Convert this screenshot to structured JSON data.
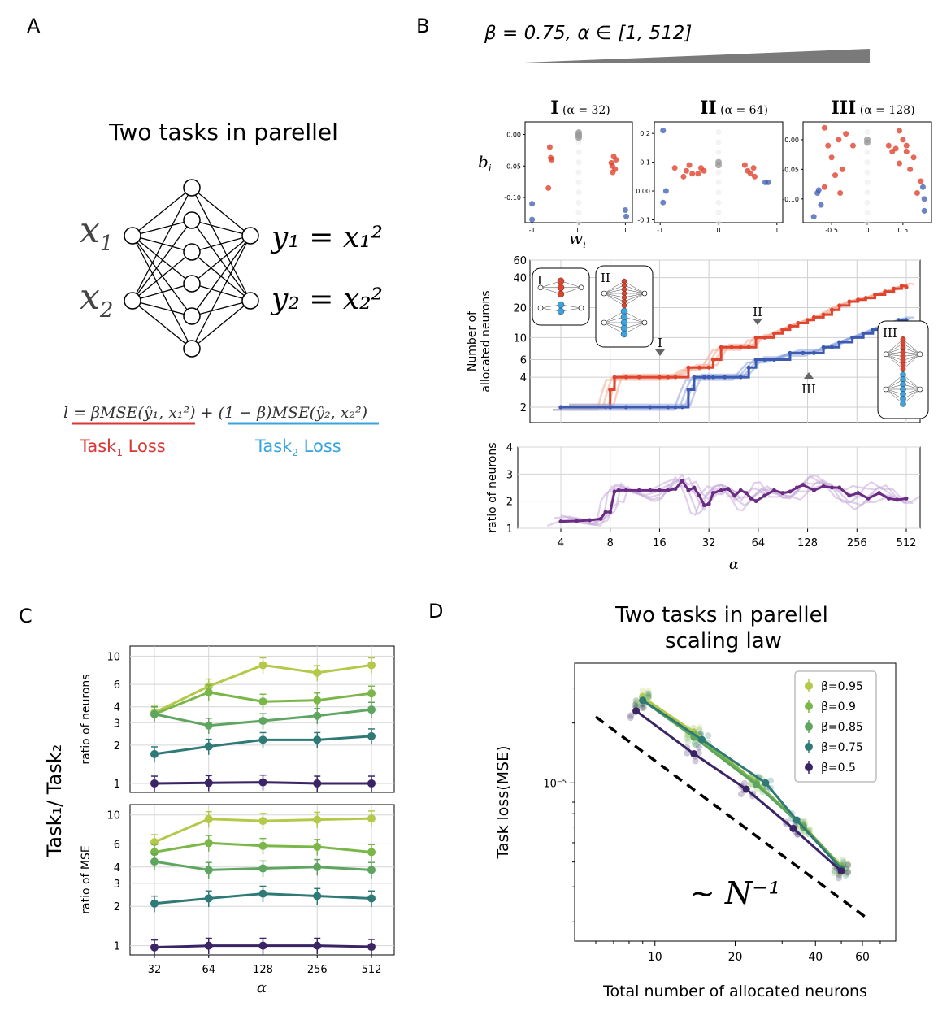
{
  "panel_labels": {
    "A": "A",
    "B": "B",
    "C": "C",
    "D": "D"
  },
  "colors": {
    "task1": "#e0432e",
    "task2": "#3c5bb0",
    "task1_light": "#f2a98f",
    "task2_light": "#8ea3dc",
    "ratio": "#6a2c83",
    "loss1": "#d93636",
    "loss2": "#3aa3e0",
    "gray": "#7f7f7f",
    "viridis": [
      "#b4c84a",
      "#7ab648",
      "#5ea660",
      "#2f7a76",
      "#3b2466"
    ]
  },
  "panel_a": {
    "title": "Two tasks in parellel",
    "in1": "x",
    "in1_sub": "1",
    "in2": "x",
    "in2_sub": "2",
    "out1": "y₁ = x₁²",
    "out2": "y₂ = x₂²",
    "loss_formula": "l = βMSE(ŷ₁, x₁²) + (1 − β)MSE(ŷ₂, x₂²)",
    "task1_label": "Task",
    "task1_sub": "1",
    "task1_tail": " Loss",
    "task2_label": "Task",
    "task2_sub": "2",
    "task2_tail": " Loss"
  },
  "panel_b": {
    "header": "β = 0.75, α ∈ [1, 512]",
    "scatter_titles": [
      {
        "roman": "I",
        "alpha": "(α = 32)"
      },
      {
        "roman": "II",
        "alpha": "(α = 64)"
      },
      {
        "roman": "III",
        "alpha": "(α = 128)"
      }
    ],
    "scatter_ylabel": "b",
    "scatter_ylabel_sub": "i",
    "scatter_xlabel": "w",
    "scatter_xlabel_sub": "i",
    "neurons_ylabel_1": "Number of",
    "neurons_ylabel_2": "allocated neurons",
    "ratio_ylabel": "ratio of neurons",
    "xlabel": "α",
    "inset_labels": [
      "I",
      "II",
      "III"
    ],
    "markers": [
      "I",
      "II",
      "III"
    ]
  },
  "panel_c": {
    "ylabel_main": "Task₁/ Task₂",
    "top_ylabel": "ratio of neurons",
    "bottom_ylabel": "ratio of MSE",
    "xlabel": "α"
  },
  "panel_d": {
    "title_1": "Two tasks in parellel",
    "title_2": "scaling law",
    "xlabel": "Total number of allocated neurons",
    "ylabel": "Task loss(MSE)",
    "annotation": "~ N⁻¹",
    "y_tick": "10⁻⁵"
  },
  "chart_data": [
    {
      "id": "B-scatter",
      "type": "scatter",
      "panels": [
        {
          "title": "I (α = 32)",
          "xticks": [
            -1,
            0,
            1
          ],
          "yticks": [
            0.0,
            -0.05,
            -0.1
          ],
          "xlim": [
            -1.15,
            1.15
          ],
          "ylim": [
            -0.14,
            0.02
          ],
          "red": [
            [
              -0.62,
              -0.02
            ],
            [
              -0.58,
              -0.04
            ],
            [
              -0.6,
              -0.037
            ],
            [
              -0.65,
              -0.085
            ],
            [
              0.75,
              -0.035
            ],
            [
              0.7,
              -0.045
            ],
            [
              0.72,
              -0.05
            ],
            [
              0.8,
              -0.04
            ],
            [
              0.73,
              -0.06
            ],
            [
              0.78,
              -0.055
            ]
          ],
          "blue": [
            [
              -1.0,
              -0.11
            ],
            [
              -1.0,
              -0.135
            ],
            [
              1.0,
              -0.12
            ],
            [
              1.02,
              -0.13
            ]
          ],
          "gray": [
            [
              0,
              0.0
            ],
            [
              0,
              -0.002
            ],
            [
              0,
              0.003
            ],
            [
              0,
              -0.005
            ]
          ]
        },
        {
          "title": "II (α = 64)",
          "xticks": [
            -1,
            0,
            1
          ],
          "yticks": [
            0.2,
            0.1,
            0.0,
            -0.1
          ],
          "xlim": [
            -1.1,
            1.1
          ],
          "ylim": [
            -0.11,
            0.24
          ],
          "red": [
            [
              -0.75,
              0.08
            ],
            [
              -0.6,
              0.05
            ],
            [
              -0.55,
              0.07
            ],
            [
              -0.5,
              0.09
            ],
            [
              -0.45,
              0.06
            ],
            [
              -0.35,
              0.06
            ],
            [
              -0.3,
              0.08
            ],
            [
              -0.25,
              0.07
            ],
            [
              0.45,
              0.09
            ],
            [
              0.5,
              0.07
            ],
            [
              0.55,
              0.06
            ],
            [
              0.6,
              0.08
            ],
            [
              0.62,
              0.05
            ]
          ],
          "blue": [
            [
              -0.95,
              0.21
            ],
            [
              -0.9,
              0.0
            ],
            [
              -0.95,
              -0.04
            ],
            [
              0.8,
              0.03
            ],
            [
              0.85,
              0.03
            ]
          ],
          "gray": [
            [
              0,
              0.1
            ],
            [
              0,
              0.09
            ]
          ]
        },
        {
          "title": "III (α = 128)",
          "xticks": [
            -0.5,
            0.0,
            0.5
          ],
          "yticks": [
            0.0,
            -0.05,
            -0.1
          ],
          "xlim": [
            -0.9,
            0.9
          ],
          "ylim": [
            -0.14,
            0.03
          ],
          "red": [
            [
              -0.6,
              0.02
            ],
            [
              -0.55,
              -0.01
            ],
            [
              -0.5,
              -0.03
            ],
            [
              -0.45,
              -0.06
            ],
            [
              -0.4,
              0.0
            ],
            [
              -0.38,
              -0.09
            ],
            [
              -0.35,
              -0.05
            ],
            [
              -0.3,
              0.01
            ],
            [
              -0.2,
              -0.01
            ],
            [
              0.3,
              -0.01
            ],
            [
              0.35,
              -0.02
            ],
            [
              0.4,
              -0.015
            ],
            [
              0.45,
              -0.04
            ],
            [
              0.5,
              0.0
            ],
            [
              0.55,
              -0.02
            ],
            [
              0.6,
              -0.05
            ],
            [
              0.65,
              -0.03
            ],
            [
              0.7,
              -0.09
            ],
            [
              0.75,
              -0.07
            ],
            [
              0.55,
              -0.01
            ],
            [
              -0.6,
              -0.08
            ],
            [
              0.45,
              0.015
            ]
          ],
          "blue": [
            [
              -0.75,
              -0.13
            ],
            [
              -0.7,
              -0.09
            ],
            [
              -0.68,
              -0.085
            ],
            [
              -0.65,
              -0.11
            ],
            [
              0.78,
              -0.08
            ],
            [
              0.8,
              -0.1
            ],
            [
              0.8,
              -0.12
            ]
          ],
          "gray": [
            [
              0,
              0.0
            ],
            [
              0,
              -0.005
            ]
          ]
        }
      ]
    },
    {
      "id": "B-neurons",
      "type": "line",
      "x_scale": "log2",
      "y_scale": "log",
      "ylim": [
        1.4,
        60
      ],
      "xlim": [
        4,
        512
      ],
      "yticks": [
        2,
        4,
        6,
        10,
        20,
        40,
        60
      ],
      "series": [
        {
          "color": "task1",
          "x": [
            4,
            7.5,
            8,
            8.5,
            10,
            12,
            16,
            18,
            20,
            24,
            28,
            32,
            34,
            38,
            44,
            50,
            56,
            62,
            70,
            80,
            90,
            100,
            112,
            128,
            140,
            160,
            180,
            200,
            230,
            260,
            290,
            330,
            380,
            430,
            480,
            512
          ],
          "y": [
            2,
            2,
            3,
            4,
            4,
            4,
            4,
            4,
            4,
            5,
            5,
            5,
            6,
            8,
            8,
            8,
            8,
            10,
            10,
            11,
            12,
            13,
            14,
            15,
            16,
            17,
            19,
            21,
            23,
            24,
            25,
            27,
            29,
            31,
            33,
            32
          ]
        },
        {
          "color": "task2",
          "x": [
            4,
            8,
            10,
            14,
            18,
            20,
            22,
            24,
            26,
            30,
            32,
            34,
            40,
            50,
            56,
            62,
            70,
            80,
            100,
            120,
            140,
            160,
            180,
            200,
            240,
            280,
            320,
            360,
            400,
            460,
            512
          ],
          "y": [
            2,
            2,
            2,
            2,
            2,
            2,
            2,
            3,
            4,
            4,
            4,
            4,
            4,
            4,
            5,
            6,
            6,
            6,
            7,
            7,
            7,
            8,
            8,
            9,
            10,
            11,
            12,
            13,
            14,
            15,
            15
          ]
        }
      ]
    },
    {
      "id": "B-ratio",
      "type": "line",
      "x_scale": "log2",
      "xlim": [
        4,
        512
      ],
      "ylim": [
        1,
        4
      ],
      "yticks": [
        1,
        2,
        3,
        4
      ],
      "xticks": [
        4,
        8,
        16,
        32,
        64,
        128,
        256,
        512
      ],
      "series": [
        {
          "color": "ratio",
          "x": [
            4,
            5,
            6,
            7,
            7.5,
            8,
            8.5,
            9,
            10,
            12,
            14,
            16,
            18,
            20,
            22,
            24,
            26,
            28,
            30,
            32,
            34,
            38,
            42,
            46,
            50,
            54,
            58,
            62,
            70,
            80,
            90,
            100,
            110,
            120,
            140,
            160,
            180,
            200,
            230,
            260,
            300,
            350,
            400,
            450,
            512
          ],
          "y": [
            1.25,
            1.27,
            1.3,
            1.35,
            1.6,
            1.6,
            2.35,
            2.4,
            2.4,
            2.4,
            2.4,
            2.4,
            2.4,
            2.45,
            2.75,
            2.4,
            2.5,
            2.2,
            1.85,
            1.9,
            2.3,
            2.4,
            2.45,
            2.2,
            2.4,
            2.3,
            2.1,
            2.0,
            2.2,
            2.4,
            2.3,
            2.35,
            2.5,
            2.6,
            2.4,
            2.55,
            2.5,
            2.5,
            2.2,
            2.3,
            2.1,
            2.3,
            2.1,
            2.05,
            2.1
          ]
        }
      ]
    },
    {
      "id": "C-neurons",
      "type": "line",
      "x_scale": "log2",
      "y_scale": "log",
      "xticks": [
        32,
        64,
        128,
        256,
        512
      ],
      "ylim": [
        0.85,
        12
      ],
      "yticks": [
        1,
        2,
        3,
        4,
        6,
        10
      ],
      "series": [
        {
          "color_index": 0,
          "x": [
            32,
            64,
            128,
            256,
            512
          ],
          "y": [
            3.6,
            5.8,
            8.5,
            7.4,
            8.5
          ]
        },
        {
          "color_index": 1,
          "x": [
            32,
            64,
            128,
            256,
            512
          ],
          "y": [
            3.5,
            5.2,
            4.4,
            4.5,
            5.1
          ]
        },
        {
          "color_index": 2,
          "x": [
            32,
            64,
            128,
            256,
            512
          ],
          "y": [
            3.5,
            2.85,
            3.1,
            3.4,
            3.8
          ]
        },
        {
          "color_index": 3,
          "x": [
            32,
            64,
            128,
            256,
            512
          ],
          "y": [
            1.7,
            1.95,
            2.2,
            2.2,
            2.35
          ]
        },
        {
          "color_index": 4,
          "x": [
            32,
            64,
            128,
            256,
            512
          ],
          "y": [
            1.0,
            1.01,
            1.02,
            1.0,
            1.0
          ]
        }
      ]
    },
    {
      "id": "C-mse",
      "type": "line",
      "x_scale": "log2",
      "y_scale": "log",
      "xticks": [
        32,
        64,
        128,
        256,
        512
      ],
      "xlabel": "α",
      "ylim": [
        0.85,
        12
      ],
      "yticks": [
        1,
        2,
        3,
        4,
        6,
        10
      ],
      "series": [
        {
          "color_index": 0,
          "x": [
            32,
            64,
            128,
            256,
            512
          ],
          "y": [
            6.2,
            9.3,
            9.0,
            9.2,
            9.4
          ]
        },
        {
          "color_index": 1,
          "x": [
            32,
            64,
            128,
            256,
            512
          ],
          "y": [
            5.2,
            6.1,
            5.8,
            5.7,
            5.2
          ]
        },
        {
          "color_index": 2,
          "x": [
            32,
            64,
            128,
            256,
            512
          ],
          "y": [
            4.4,
            3.8,
            3.9,
            4.0,
            3.8
          ]
        },
        {
          "color_index": 3,
          "x": [
            32,
            64,
            128,
            256,
            512
          ],
          "y": [
            2.1,
            2.3,
            2.5,
            2.4,
            2.3
          ]
        },
        {
          "color_index": 4,
          "x": [
            32,
            64,
            128,
            256,
            512
          ],
          "y": [
            0.97,
            1.0,
            1.0,
            1.0,
            0.98
          ]
        }
      ]
    },
    {
      "id": "D-scaling",
      "type": "line",
      "x_scale": "log",
      "y_scale": "log",
      "xticks": [
        10,
        20,
        40,
        60
      ],
      "xlim": [
        5,
        80
      ],
      "ylim": [
        1.6e-06,
        4e-05
      ],
      "series": [
        {
          "name": "β=0.95",
          "color_index": 0,
          "x": [
            9,
            14,
            24,
            36,
            50
          ],
          "y": [
            2.7e-05,
            1.8e-05,
            1e-05,
            6e-06,
            3.8e-06
          ]
        },
        {
          "name": "β=0.9",
          "color_index": 1,
          "x": [
            9,
            14,
            24,
            36,
            50
          ],
          "y": [
            2.6e-05,
            1.75e-05,
            1e-05,
            6.1e-06,
            3.8e-06
          ]
        },
        {
          "name": "β=0.85",
          "color_index": 2,
          "x": [
            9,
            14,
            24,
            36,
            50
          ],
          "y": [
            2.6e-05,
            1.7e-05,
            9.8e-06,
            6e-06,
            3.7e-06
          ]
        },
        {
          "name": "β=0.75",
          "color_index": 3,
          "x": [
            9,
            15,
            26,
            34,
            50
          ],
          "y": [
            2.6e-05,
            1.65e-05,
            1e-05,
            6.5e-06,
            3.7e-06
          ]
        },
        {
          "name": "β=0.5",
          "color_index": 4,
          "x": [
            8.5,
            14,
            22,
            33,
            50
          ],
          "y": [
            2.3e-05,
            1.4e-05,
            9.3e-06,
            5.9e-06,
            3.6e-06
          ]
        }
      ],
      "reference": {
        "label": "~ N⁻¹",
        "x": [
          6,
          62
        ],
        "y": [
          2.15e-05,
          2.1e-06
        ]
      }
    }
  ]
}
